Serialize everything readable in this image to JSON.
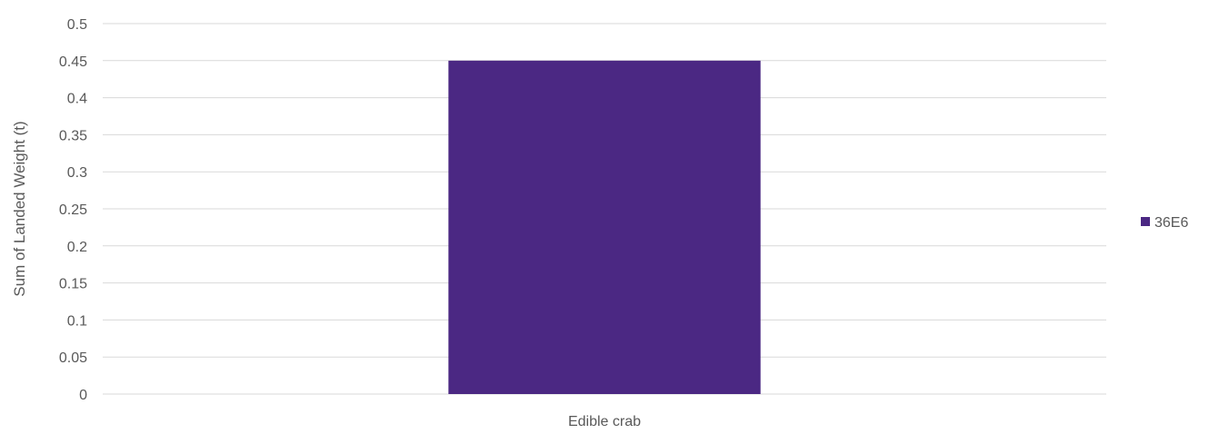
{
  "chart_data": {
    "type": "bar",
    "title": "",
    "xlabel": "",
    "ylabel": "Sum of Landed Weight (t)",
    "categories": [
      "Edible crab"
    ],
    "series": [
      {
        "name": "36E6",
        "values": [
          0.45
        ],
        "color": "#4b2883"
      }
    ],
    "ylim": [
      0,
      0.5
    ],
    "yticks": [
      "0",
      "0.05",
      "0.1",
      "0.15",
      "0.2",
      "0.25",
      "0.3",
      "0.35",
      "0.4",
      "0.45",
      "0.5"
    ],
    "grid": true,
    "legend_position": "right",
    "colors": {
      "bar": "#4b2883",
      "grid": "#d9d9d9",
      "text": "#595959"
    }
  }
}
